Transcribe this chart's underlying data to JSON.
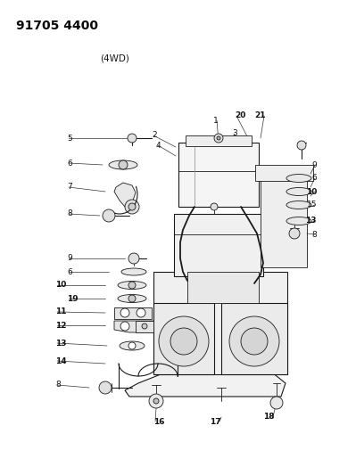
{
  "title": "91705 4400",
  "subtitle": "(4WD)",
  "bg_color": "#ffffff",
  "line_color": "#1a1a1a",
  "label_color": "#111111",
  "title_fontsize": 10,
  "subtitle_fontsize": 7.5,
  "label_fontsize": 6.5,
  "figsize": [
    3.99,
    5.33
  ],
  "dpi": 100
}
